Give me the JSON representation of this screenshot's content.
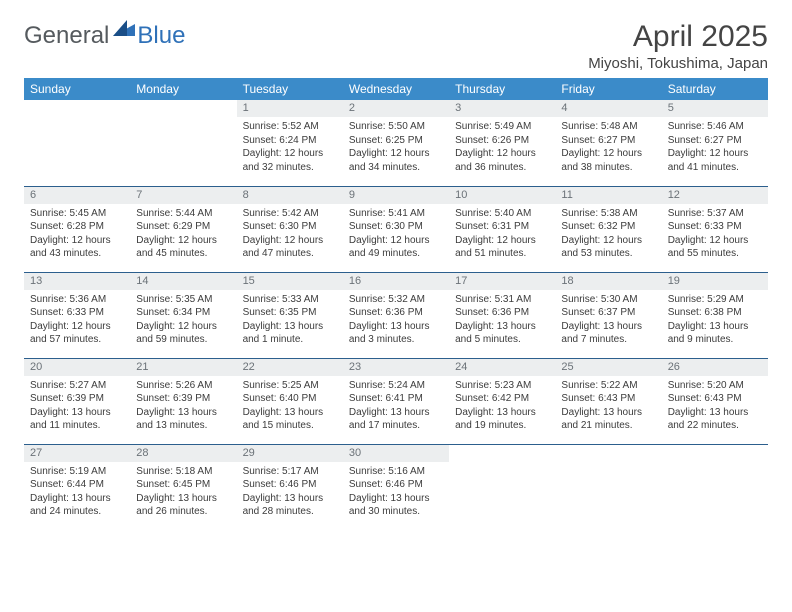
{
  "brand": {
    "part1": "General",
    "part2": "Blue"
  },
  "title": "April 2025",
  "location": "Miyoshi, Tokushima, Japan",
  "colors": {
    "header_bg": "#3b8bc9",
    "header_text": "#ffffff",
    "daynum_bg": "#eceeef",
    "daynum_text": "#6b7278",
    "row_divider": "#2c5f8d",
    "body_text": "#3c3c3c",
    "brand_gray": "#555a5e",
    "brand_blue": "#2f71b8"
  },
  "typography": {
    "title_fontsize": 30,
    "location_fontsize": 15,
    "header_fontsize": 12,
    "daynum_fontsize": 11,
    "cell_fontsize": 10
  },
  "weekdays": [
    "Sunday",
    "Monday",
    "Tuesday",
    "Wednesday",
    "Thursday",
    "Friday",
    "Saturday"
  ],
  "weeks": [
    [
      null,
      null,
      {
        "n": "1",
        "sunrise": "Sunrise: 5:52 AM",
        "sunset": "Sunset: 6:24 PM",
        "daylight": "Daylight: 12 hours and 32 minutes."
      },
      {
        "n": "2",
        "sunrise": "Sunrise: 5:50 AM",
        "sunset": "Sunset: 6:25 PM",
        "daylight": "Daylight: 12 hours and 34 minutes."
      },
      {
        "n": "3",
        "sunrise": "Sunrise: 5:49 AM",
        "sunset": "Sunset: 6:26 PM",
        "daylight": "Daylight: 12 hours and 36 minutes."
      },
      {
        "n": "4",
        "sunrise": "Sunrise: 5:48 AM",
        "sunset": "Sunset: 6:27 PM",
        "daylight": "Daylight: 12 hours and 38 minutes."
      },
      {
        "n": "5",
        "sunrise": "Sunrise: 5:46 AM",
        "sunset": "Sunset: 6:27 PM",
        "daylight": "Daylight: 12 hours and 41 minutes."
      }
    ],
    [
      {
        "n": "6",
        "sunrise": "Sunrise: 5:45 AM",
        "sunset": "Sunset: 6:28 PM",
        "daylight": "Daylight: 12 hours and 43 minutes."
      },
      {
        "n": "7",
        "sunrise": "Sunrise: 5:44 AM",
        "sunset": "Sunset: 6:29 PM",
        "daylight": "Daylight: 12 hours and 45 minutes."
      },
      {
        "n": "8",
        "sunrise": "Sunrise: 5:42 AM",
        "sunset": "Sunset: 6:30 PM",
        "daylight": "Daylight: 12 hours and 47 minutes."
      },
      {
        "n": "9",
        "sunrise": "Sunrise: 5:41 AM",
        "sunset": "Sunset: 6:30 PM",
        "daylight": "Daylight: 12 hours and 49 minutes."
      },
      {
        "n": "10",
        "sunrise": "Sunrise: 5:40 AM",
        "sunset": "Sunset: 6:31 PM",
        "daylight": "Daylight: 12 hours and 51 minutes."
      },
      {
        "n": "11",
        "sunrise": "Sunrise: 5:38 AM",
        "sunset": "Sunset: 6:32 PM",
        "daylight": "Daylight: 12 hours and 53 minutes."
      },
      {
        "n": "12",
        "sunrise": "Sunrise: 5:37 AM",
        "sunset": "Sunset: 6:33 PM",
        "daylight": "Daylight: 12 hours and 55 minutes."
      }
    ],
    [
      {
        "n": "13",
        "sunrise": "Sunrise: 5:36 AM",
        "sunset": "Sunset: 6:33 PM",
        "daylight": "Daylight: 12 hours and 57 minutes."
      },
      {
        "n": "14",
        "sunrise": "Sunrise: 5:35 AM",
        "sunset": "Sunset: 6:34 PM",
        "daylight": "Daylight: 12 hours and 59 minutes."
      },
      {
        "n": "15",
        "sunrise": "Sunrise: 5:33 AM",
        "sunset": "Sunset: 6:35 PM",
        "daylight": "Daylight: 13 hours and 1 minute."
      },
      {
        "n": "16",
        "sunrise": "Sunrise: 5:32 AM",
        "sunset": "Sunset: 6:36 PM",
        "daylight": "Daylight: 13 hours and 3 minutes."
      },
      {
        "n": "17",
        "sunrise": "Sunrise: 5:31 AM",
        "sunset": "Sunset: 6:36 PM",
        "daylight": "Daylight: 13 hours and 5 minutes."
      },
      {
        "n": "18",
        "sunrise": "Sunrise: 5:30 AM",
        "sunset": "Sunset: 6:37 PM",
        "daylight": "Daylight: 13 hours and 7 minutes."
      },
      {
        "n": "19",
        "sunrise": "Sunrise: 5:29 AM",
        "sunset": "Sunset: 6:38 PM",
        "daylight": "Daylight: 13 hours and 9 minutes."
      }
    ],
    [
      {
        "n": "20",
        "sunrise": "Sunrise: 5:27 AM",
        "sunset": "Sunset: 6:39 PM",
        "daylight": "Daylight: 13 hours and 11 minutes."
      },
      {
        "n": "21",
        "sunrise": "Sunrise: 5:26 AM",
        "sunset": "Sunset: 6:39 PM",
        "daylight": "Daylight: 13 hours and 13 minutes."
      },
      {
        "n": "22",
        "sunrise": "Sunrise: 5:25 AM",
        "sunset": "Sunset: 6:40 PM",
        "daylight": "Daylight: 13 hours and 15 minutes."
      },
      {
        "n": "23",
        "sunrise": "Sunrise: 5:24 AM",
        "sunset": "Sunset: 6:41 PM",
        "daylight": "Daylight: 13 hours and 17 minutes."
      },
      {
        "n": "24",
        "sunrise": "Sunrise: 5:23 AM",
        "sunset": "Sunset: 6:42 PM",
        "daylight": "Daylight: 13 hours and 19 minutes."
      },
      {
        "n": "25",
        "sunrise": "Sunrise: 5:22 AM",
        "sunset": "Sunset: 6:43 PM",
        "daylight": "Daylight: 13 hours and 21 minutes."
      },
      {
        "n": "26",
        "sunrise": "Sunrise: 5:20 AM",
        "sunset": "Sunset: 6:43 PM",
        "daylight": "Daylight: 13 hours and 22 minutes."
      }
    ],
    [
      {
        "n": "27",
        "sunrise": "Sunrise: 5:19 AM",
        "sunset": "Sunset: 6:44 PM",
        "daylight": "Daylight: 13 hours and 24 minutes."
      },
      {
        "n": "28",
        "sunrise": "Sunrise: 5:18 AM",
        "sunset": "Sunset: 6:45 PM",
        "daylight": "Daylight: 13 hours and 26 minutes."
      },
      {
        "n": "29",
        "sunrise": "Sunrise: 5:17 AM",
        "sunset": "Sunset: 6:46 PM",
        "daylight": "Daylight: 13 hours and 28 minutes."
      },
      {
        "n": "30",
        "sunrise": "Sunrise: 5:16 AM",
        "sunset": "Sunset: 6:46 PM",
        "daylight": "Daylight: 13 hours and 30 minutes."
      },
      null,
      null,
      null
    ]
  ]
}
